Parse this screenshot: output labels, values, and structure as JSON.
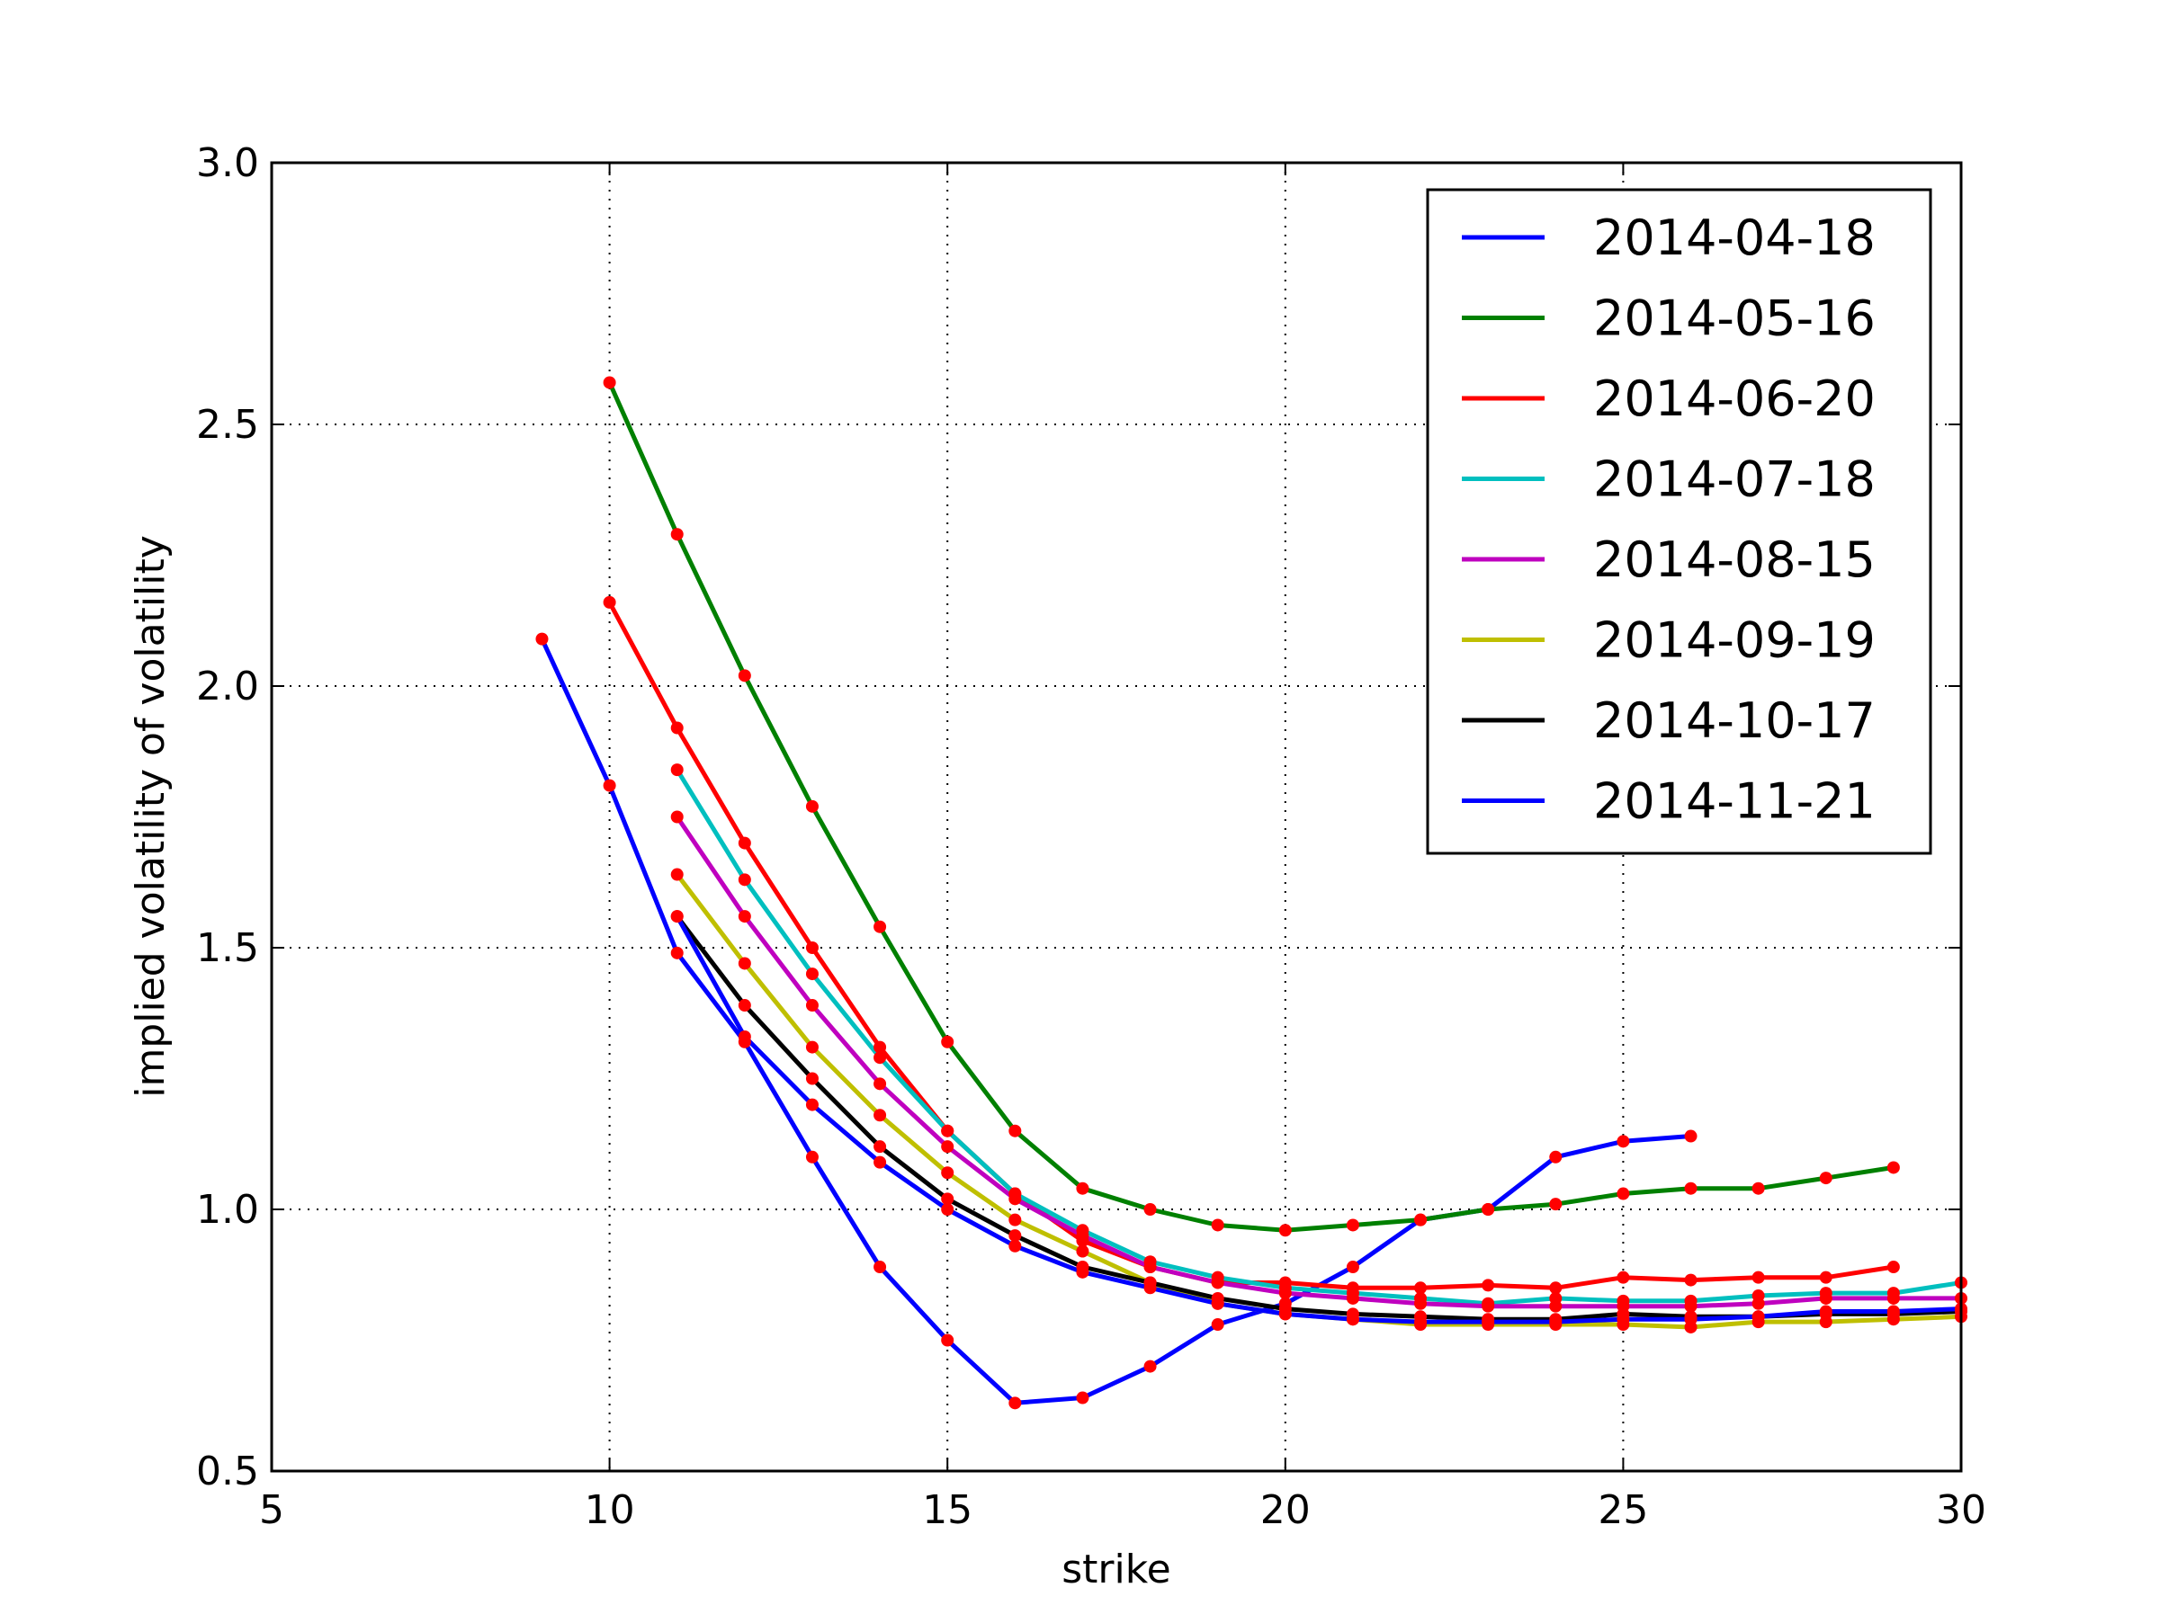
{
  "chart_data": {
    "type": "line",
    "title": "",
    "xlabel": "strike",
    "ylabel": "implied volatility of volatility",
    "xlim": [
      5,
      30
    ],
    "ylim": [
      0.5,
      3.0
    ],
    "xticks": [
      "5",
      "10",
      "15",
      "20",
      "25",
      "30"
    ],
    "yticks": [
      "0.5",
      "1.0",
      "1.5",
      "2.0",
      "2.5",
      "3.0"
    ],
    "grid": true,
    "legend_position": "top-right",
    "marker_color": "#ff0000",
    "series": [
      {
        "name": "2014-04-18",
        "color": "#0000ff",
        "x": [
          9,
          10,
          11,
          12,
          13,
          14,
          15,
          16,
          17,
          18,
          19,
          20,
          21,
          22,
          23,
          24,
          25,
          26
        ],
        "y": [
          2.09,
          1.81,
          1.49,
          1.32,
          1.1,
          0.89,
          0.75,
          0.63,
          0.64,
          0.7,
          0.78,
          0.82,
          0.89,
          0.98,
          1.0,
          1.1,
          1.13,
          1.14
        ]
      },
      {
        "name": "2014-05-16",
        "color": "#008000",
        "x": [
          10,
          11,
          12,
          13,
          14,
          15,
          16,
          17,
          18,
          19,
          20,
          21,
          22,
          23,
          24,
          25,
          26,
          27,
          28,
          29
        ],
        "y": [
          2.58,
          2.29,
          2.02,
          1.77,
          1.54,
          1.32,
          1.15,
          1.04,
          1.0,
          0.97,
          0.96,
          0.97,
          0.98,
          1.0,
          1.01,
          1.03,
          1.04,
          1.04,
          1.06,
          1.08
        ]
      },
      {
        "name": "2014-06-20",
        "color": "#ff0000",
        "x": [
          10,
          11,
          12,
          13,
          14,
          15,
          16,
          17,
          18,
          19,
          20,
          21,
          22,
          23,
          24,
          25,
          26,
          27,
          28,
          29
        ],
        "y": [
          2.16,
          1.92,
          1.7,
          1.5,
          1.31,
          1.15,
          1.03,
          0.94,
          0.89,
          0.86,
          0.86,
          0.85,
          0.85,
          0.855,
          0.85,
          0.87,
          0.865,
          0.87,
          0.87,
          0.89
        ]
      },
      {
        "name": "2014-07-18",
        "color": "#00bfbf",
        "x": [
          11,
          12,
          13,
          14,
          15,
          16,
          17,
          18,
          19,
          20,
          21,
          22,
          23,
          24,
          25,
          26,
          27,
          28,
          29,
          30
        ],
        "y": [
          1.84,
          1.63,
          1.45,
          1.29,
          1.15,
          1.03,
          0.96,
          0.9,
          0.87,
          0.85,
          0.84,
          0.83,
          0.82,
          0.83,
          0.825,
          0.825,
          0.835,
          0.84,
          0.84,
          0.86
        ]
      },
      {
        "name": "2014-08-15",
        "color": "#bf00bf",
        "x": [
          11,
          12,
          13,
          14,
          15,
          16,
          17,
          18,
          19,
          20,
          21,
          22,
          23,
          24,
          25,
          26,
          27,
          28,
          29,
          30
        ],
        "y": [
          1.75,
          1.56,
          1.39,
          1.24,
          1.12,
          1.02,
          0.95,
          0.89,
          0.86,
          0.84,
          0.83,
          0.82,
          0.815,
          0.815,
          0.815,
          0.815,
          0.82,
          0.83,
          0.83,
          0.83
        ]
      },
      {
        "name": "2014-09-19",
        "color": "#bfbf00",
        "x": [
          11,
          12,
          13,
          14,
          15,
          16,
          17,
          18,
          19,
          20,
          21,
          22,
          23,
          24,
          25,
          26,
          27,
          28,
          29,
          30
        ],
        "y": [
          1.64,
          1.47,
          1.31,
          1.18,
          1.07,
          0.98,
          0.92,
          0.86,
          0.82,
          0.8,
          0.79,
          0.78,
          0.78,
          0.78,
          0.78,
          0.775,
          0.785,
          0.785,
          0.79,
          0.795
        ]
      },
      {
        "name": "2014-10-17",
        "color": "#000000",
        "x": [
          11,
          12,
          13,
          14,
          15,
          16,
          17,
          18,
          19,
          20,
          21,
          22,
          23,
          24,
          25,
          26,
          27,
          28,
          29,
          30
        ],
        "y": [
          1.56,
          1.39,
          1.25,
          1.12,
          1.02,
          0.95,
          0.89,
          0.86,
          0.83,
          0.81,
          0.8,
          0.795,
          0.79,
          0.79,
          0.8,
          0.795,
          0.795,
          0.8,
          0.8,
          0.805
        ]
      },
      {
        "name": "2014-11-21",
        "color": "#0000ff",
        "x": [
          11,
          12,
          13,
          14,
          15,
          16,
          17,
          18,
          19,
          20,
          21,
          22,
          23,
          24,
          25,
          26,
          27,
          28,
          29,
          30
        ],
        "y": [
          1.56,
          1.33,
          1.2,
          1.09,
          1.0,
          0.93,
          0.88,
          0.85,
          0.82,
          0.8,
          0.79,
          0.785,
          0.785,
          0.785,
          0.79,
          0.79,
          0.795,
          0.805,
          0.805,
          0.81
        ]
      }
    ]
  }
}
